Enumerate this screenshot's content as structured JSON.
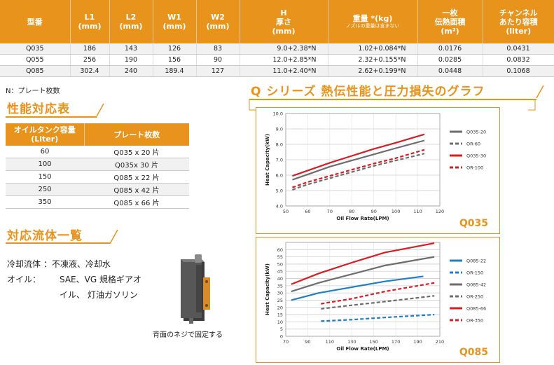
{
  "spec_table": {
    "headers": [
      {
        "main": "型番",
        "sub": ""
      },
      {
        "main": "L1",
        "sub2": "(mm)"
      },
      {
        "main": "L2",
        "sub2": "(mm)"
      },
      {
        "main": "W1",
        "sub2": "(mm)"
      },
      {
        "main": "W2",
        "sub2": "(mm)"
      },
      {
        "main": "H",
        "sub2": "厚さ",
        "sub3": "(mm)"
      },
      {
        "main": "重量 *(kg)",
        "sub": "ノズルの重量は含まない"
      },
      {
        "main": "一枚",
        "sub2": "伝熱面積",
        "sub3": "(m²)"
      },
      {
        "main": "チャンネル",
        "sub2": "あたり容積",
        "sub3": "(liter)"
      }
    ],
    "rows": [
      [
        "Q035",
        "186",
        "143",
        "126",
        "83",
        "9.0+2.38*N",
        "1.02+0.084*N",
        "0.0176",
        "0.0431"
      ],
      [
        "Q055",
        "256",
        "190",
        "156",
        "90",
        "12.0+2.85*N",
        "2.32+0.155*N",
        "0.0285",
        "0.0832"
      ],
      [
        "Q085",
        "302.4",
        "240",
        "189.4",
        "127",
        "11.0+2.40*N",
        "2.62+0.199*N",
        "0.0448",
        "0.1068"
      ]
    ]
  },
  "note": "N：プレート枚数",
  "capacity": {
    "heading": "性能対応表",
    "headers": [
      "オイルタンク容量 (Liter)",
      "プレート枚数"
    ],
    "rows": [
      [
        "60",
        "Q035 x 20 片"
      ],
      [
        "100",
        "Q035x 30 片"
      ],
      [
        "150",
        "Q085 x 22 片"
      ],
      [
        "250",
        "Q085 x 42 片"
      ],
      [
        "350",
        "Q085 x 66 片"
      ]
    ]
  },
  "fluids": {
    "heading": "対応流体一覧",
    "line1_label": "冷却流体 ：",
    "line1_value": "不凍液、冷却水",
    "line2_label": "オイル： ",
    "line2_value": "SAE、VG 規格ギアオ",
    "line3_value": "イル、 灯油ガソリン",
    "caption": "背面のネジで固定する"
  },
  "graphs_heading": "Q シリーズ 熱伝性能と圧力損失のグラフ",
  "colors": {
    "accent": "#e8931c",
    "grey": "#6d6d6d",
    "red": "#d71c24",
    "blue": "#1f7fc4"
  },
  "chart_data": [
    {
      "type": "line",
      "title": "Q035",
      "xlabel": "Oil Flow Rate(LPM)",
      "ylabel": "Heat Capacity(kW)",
      "xlim": [
        50,
        120
      ],
      "ylim": [
        4.0,
        10.0
      ],
      "xticks": [
        "50",
        "60",
        "70",
        "80",
        "90",
        "100",
        "110",
        "120"
      ],
      "yticks": [
        "4.0",
        "5.0",
        "6.0",
        "7.0",
        "8.0",
        "9.0",
        "10.0"
      ],
      "grid": true,
      "legend": "right",
      "series": [
        {
          "name": "Q035-20",
          "color": "#6d6d6d",
          "dashed": false,
          "x": [
            53,
            60,
            70,
            80,
            90,
            100,
            113
          ],
          "y": [
            5.7,
            6.05,
            6.55,
            6.95,
            7.35,
            7.75,
            8.25
          ]
        },
        {
          "name": "OR-60",
          "color": "#6d6d6d",
          "dashed": true,
          "x": [
            53,
            60,
            70,
            80,
            90,
            100,
            113
          ],
          "y": [
            5.05,
            5.4,
            5.8,
            6.2,
            6.6,
            6.95,
            7.4
          ]
        },
        {
          "name": "Q035-30",
          "color": "#d71c24",
          "dashed": false,
          "x": [
            53,
            60,
            70,
            80,
            90,
            100,
            113
          ],
          "y": [
            5.95,
            6.3,
            6.8,
            7.25,
            7.7,
            8.1,
            8.65
          ]
        },
        {
          "name": "OR-100",
          "color": "#d71c24",
          "dashed": true,
          "x": [
            53,
            60,
            70,
            80,
            90,
            100,
            113
          ],
          "y": [
            5.2,
            5.55,
            5.95,
            6.35,
            6.75,
            7.1,
            7.65
          ]
        }
      ]
    },
    {
      "type": "line",
      "title": "Q085",
      "xlabel": "Oil Flow Rate(LPM)",
      "ylabel": "Heat Capacity(kW)",
      "xlim": [
        70,
        210
      ],
      "ylim": [
        0,
        65
      ],
      "xticks": [
        "70",
        "90",
        "110",
        "130",
        "150",
        "170",
        "190",
        "210"
      ],
      "yticks": [
        "0",
        "5",
        "10",
        "15",
        "20",
        "25",
        "30",
        "35",
        "40",
        "45",
        "50",
        "55",
        "60"
      ],
      "grid": true,
      "legend": "right",
      "series": [
        {
          "name": "Q085-22",
          "color": "#1f7fc4",
          "dashed": false,
          "x": [
            75,
            100,
            130,
            160,
            195
          ],
          "y": [
            25,
            30,
            34,
            38,
            41.5
          ]
        },
        {
          "name": "OR-150",
          "color": "#1f7fc4",
          "dashed": true,
          "x": [
            102,
            130,
            160,
            205
          ],
          "y": [
            10.5,
            11.5,
            13,
            15
          ]
        },
        {
          "name": "Q085-42",
          "color": "#6d6d6d",
          "dashed": false,
          "x": [
            75,
            100,
            130,
            160,
            205
          ],
          "y": [
            31,
            37,
            43,
            49,
            55
          ]
        },
        {
          "name": "OR-250",
          "color": "#6d6d6d",
          "dashed": true,
          "x": [
            102,
            130,
            160,
            205
          ],
          "y": [
            19,
            21.5,
            24,
            28
          ]
        },
        {
          "name": "Q085-66",
          "color": "#d71c24",
          "dashed": false,
          "x": [
            75,
            100,
            130,
            160,
            205
          ],
          "y": [
            36,
            43.5,
            51,
            58,
            64.5
          ]
        },
        {
          "name": "OR-350",
          "color": "#d71c24",
          "dashed": true,
          "x": [
            102,
            130,
            160,
            205
          ],
          "y": [
            22.5,
            26,
            31,
            37
          ]
        }
      ]
    }
  ]
}
